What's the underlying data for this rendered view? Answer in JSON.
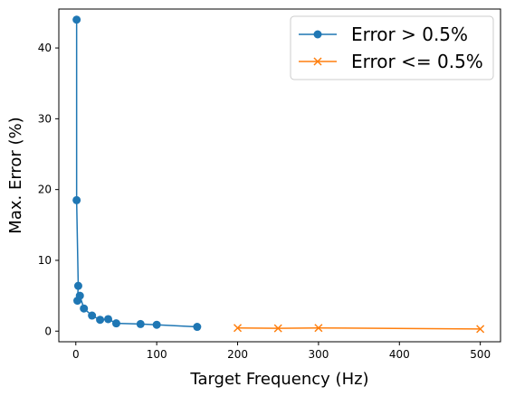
{
  "chart_data": {
    "type": "line",
    "title": "",
    "xlabel": "Target Frequency (Hz)",
    "ylabel": "Max. Error (%)",
    "xlim": [
      -21,
      525
    ],
    "ylim": [
      -1.5,
      45.5
    ],
    "xticks": [
      0,
      100,
      200,
      300,
      400,
      500
    ],
    "yticks": [
      0,
      10,
      20,
      30,
      40
    ],
    "grid": false,
    "legend_position": "top-right",
    "series": [
      {
        "name": "Error > 0.5%",
        "color": "#1f77b4",
        "marker": "circle",
        "points": [
          {
            "x": 1,
            "y": 44.0
          },
          {
            "x": 1,
            "y": 18.5
          },
          {
            "x": 3,
            "y": 6.4
          },
          {
            "x": 2,
            "y": 4.3
          },
          {
            "x": 5,
            "y": 5.0
          },
          {
            "x": 10,
            "y": 3.2
          },
          {
            "x": 20,
            "y": 2.2
          },
          {
            "x": 30,
            "y": 1.6
          },
          {
            "x": 40,
            "y": 1.7
          },
          {
            "x": 50,
            "y": 1.1
          },
          {
            "x": 80,
            "y": 1.0
          },
          {
            "x": 100,
            "y": 0.9
          },
          {
            "x": 150,
            "y": 0.6
          }
        ]
      },
      {
        "name": "Error <= 0.5%",
        "color": "#ff7f0e",
        "marker": "x",
        "points": [
          {
            "x": 200,
            "y": 0.45
          },
          {
            "x": 250,
            "y": 0.4
          },
          {
            "x": 300,
            "y": 0.45
          },
          {
            "x": 500,
            "y": 0.3
          }
        ]
      }
    ]
  }
}
